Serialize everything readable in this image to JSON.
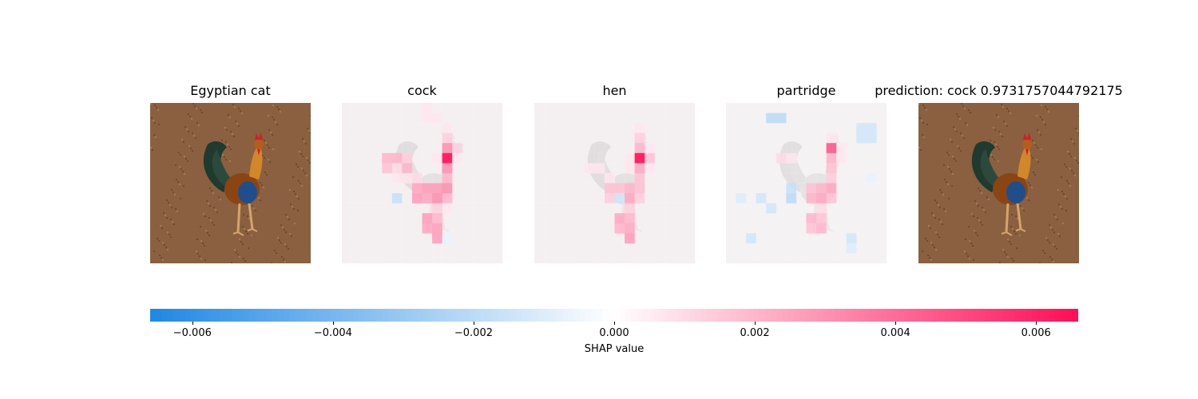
{
  "panels": [
    {
      "title": "Egyptian cat",
      "kind": "photo"
    },
    {
      "title": "cock",
      "kind": "shap",
      "grid": [
        [
          0.05,
          0.05,
          0.05,
          0.05,
          0.05,
          0.05,
          0.05,
          0.05,
          0.1,
          0.05,
          0.05,
          0.05,
          0.05,
          0.05,
          0.05,
          0.05
        ],
        [
          0.05,
          0.05,
          0.05,
          0.05,
          0.05,
          0.05,
          0.05,
          0.05,
          0.1,
          0.1,
          0.05,
          0.05,
          0.05,
          0.05,
          0.05,
          0.05
        ],
        [
          0.05,
          0.05,
          0.05,
          0.05,
          0.05,
          0.05,
          0.05,
          0.05,
          0.05,
          0.05,
          0.1,
          0.05,
          0.05,
          0.05,
          0.05,
          0.05
        ],
        [
          0.05,
          0.05,
          0.05,
          0.05,
          0.05,
          0.05,
          0.05,
          0.05,
          0.05,
          0.05,
          0.2,
          0.05,
          0.05,
          0.05,
          0.05,
          0.05
        ],
        [
          0.05,
          0.05,
          0.05,
          0.05,
          0.05,
          0.05,
          0.05,
          0.05,
          0.05,
          0.05,
          0.45,
          0.2,
          0.05,
          0.05,
          0.05,
          0.05
        ],
        [
          0.05,
          0.05,
          0.05,
          0.05,
          0.3,
          0.3,
          0.2,
          0.05,
          0.05,
          0.1,
          1.0,
          0.1,
          0.05,
          0.05,
          0.05,
          0.05
        ],
        [
          0.05,
          0.05,
          0.05,
          0.05,
          0.25,
          0.15,
          0.3,
          0.05,
          0.05,
          0.05,
          0.45,
          0.05,
          0.05,
          0.05,
          0.05,
          0.05
        ],
        [
          0.05,
          0.05,
          0.05,
          0.05,
          0.05,
          0.1,
          0.1,
          0.15,
          0.05,
          0.05,
          0.3,
          0.05,
          0.05,
          0.05,
          0.05,
          0.05
        ],
        [
          0.05,
          0.05,
          0.05,
          0.05,
          0.05,
          0.05,
          0.05,
          0.35,
          0.4,
          0.4,
          0.45,
          0.05,
          0.05,
          0.05,
          0.05,
          0.05
        ],
        [
          0.05,
          0.05,
          0.05,
          0.05,
          0.05,
          -0.25,
          0.05,
          0.4,
          0.35,
          0.45,
          0.3,
          0.05,
          0.05,
          0.05,
          0.05,
          0.05
        ],
        [
          0.05,
          0.05,
          0.05,
          0.05,
          0.05,
          0.05,
          0.05,
          0.05,
          0.05,
          0.2,
          0.1,
          0.05,
          0.05,
          0.05,
          0.05,
          0.05
        ],
        [
          0.05,
          0.05,
          0.05,
          0.05,
          0.05,
          0.05,
          0.05,
          0.05,
          0.4,
          0.3,
          0.05,
          0.05,
          0.05,
          0.05,
          0.05,
          0.05
        ],
        [
          0.05,
          0.05,
          0.05,
          0.05,
          0.05,
          0.05,
          0.05,
          0.05,
          0.35,
          0.4,
          0.05,
          0.05,
          0.05,
          0.05,
          0.05,
          0.05
        ],
        [
          0.05,
          0.05,
          0.05,
          0.05,
          0.05,
          0.05,
          0.05,
          0.05,
          0.05,
          0.4,
          -0.1,
          0.05,
          0.05,
          0.05,
          0.05,
          0.05
        ],
        [
          0.05,
          0.05,
          0.05,
          0.05,
          0.05,
          0.05,
          0.05,
          0.05,
          0.05,
          0.05,
          0.05,
          0.05,
          0.05,
          0.05,
          0.05,
          0.05
        ],
        [
          0.05,
          0.05,
          0.05,
          0.05,
          0.05,
          0.05,
          0.05,
          0.05,
          0.05,
          0.05,
          0.05,
          0.05,
          0.05,
          0.05,
          0.05,
          0.05
        ]
      ]
    },
    {
      "title": "hen",
      "kind": "shap",
      "grid": [
        [
          0.05,
          0.05,
          0.05,
          0.05,
          0.05,
          0.05,
          0.05,
          0.05,
          0.05,
          0.05,
          0.05,
          0.05,
          0.05,
          0.05,
          0.05,
          0.05
        ],
        [
          0.05,
          0.05,
          0.05,
          0.05,
          0.05,
          0.05,
          0.05,
          0.05,
          0.05,
          0.05,
          0.05,
          0.05,
          0.05,
          0.05,
          0.05,
          0.05
        ],
        [
          0.05,
          0.05,
          0.05,
          0.05,
          0.05,
          0.05,
          0.05,
          0.05,
          0.05,
          0.05,
          0.1,
          0.05,
          0.05,
          0.05,
          0.05,
          0.05
        ],
        [
          0.05,
          0.05,
          0.05,
          0.05,
          0.05,
          0.05,
          0.05,
          0.05,
          0.05,
          0.05,
          0.2,
          0.05,
          0.05,
          0.05,
          0.05,
          0.05
        ],
        [
          0.05,
          0.05,
          0.05,
          0.05,
          0.05,
          0.05,
          0.05,
          0.05,
          0.05,
          0.05,
          0.3,
          0.1,
          0.05,
          0.05,
          0.05,
          0.05
        ],
        [
          0.05,
          0.05,
          0.05,
          0.05,
          0.05,
          0.05,
          0.05,
          0.05,
          0.05,
          0.1,
          1.0,
          0.25,
          0.05,
          0.05,
          0.05,
          0.05
        ],
        [
          0.05,
          0.05,
          0.05,
          0.05,
          0.05,
          0.1,
          0.1,
          0.05,
          0.05,
          0.1,
          0.35,
          0.1,
          0.05,
          0.05,
          0.05,
          0.05
        ],
        [
          0.05,
          0.05,
          0.05,
          0.05,
          0.05,
          0.05,
          0.05,
          0.1,
          0.05,
          0.05,
          0.25,
          0.05,
          0.05,
          0.05,
          0.05,
          0.05
        ],
        [
          0.05,
          0.05,
          0.05,
          0.05,
          0.05,
          0.05,
          0.05,
          0.25,
          0.25,
          0.3,
          0.25,
          0.05,
          0.05,
          0.05,
          0.05,
          0.05
        ],
        [
          0.05,
          0.05,
          0.05,
          0.05,
          0.05,
          0.05,
          0.05,
          0.2,
          -0.2,
          0.35,
          0.2,
          0.05,
          0.05,
          0.05,
          0.05,
          0.05
        ],
        [
          0.05,
          0.05,
          0.05,
          0.05,
          0.05,
          0.05,
          0.05,
          0.05,
          0.05,
          0.2,
          0.05,
          0.05,
          0.05,
          0.05,
          0.05,
          0.05
        ],
        [
          0.05,
          0.05,
          0.05,
          0.05,
          0.05,
          0.05,
          0.05,
          0.05,
          0.35,
          0.3,
          0.05,
          0.05,
          0.05,
          0.05,
          0.05,
          0.05
        ],
        [
          0.05,
          0.05,
          0.05,
          0.05,
          0.05,
          0.05,
          0.05,
          0.05,
          0.3,
          0.35,
          0.05,
          0.05,
          0.05,
          0.05,
          0.05,
          0.05
        ],
        [
          0.05,
          0.05,
          0.05,
          0.05,
          0.05,
          0.05,
          0.05,
          0.05,
          0.05,
          0.4,
          0.05,
          0.05,
          0.05,
          0.05,
          0.05,
          0.05
        ],
        [
          0.05,
          0.05,
          0.05,
          0.05,
          0.05,
          0.05,
          0.05,
          0.05,
          0.05,
          0.05,
          0.05,
          0.05,
          0.05,
          0.05,
          0.05,
          0.05
        ],
        [
          0.05,
          0.05,
          0.05,
          0.05,
          0.05,
          0.05,
          0.05,
          0.05,
          0.05,
          0.05,
          0.05,
          0.05,
          0.05,
          0.05,
          0.05,
          0.05
        ]
      ]
    },
    {
      "title": "partridge",
      "kind": "shap",
      "grid": [
        [
          0.02,
          0.02,
          0.02,
          0.02,
          0.02,
          0.02,
          0.02,
          0.02,
          0.02,
          0.02,
          0.02,
          0.02,
          0.02,
          0.02,
          0.02,
          0.02
        ],
        [
          0.02,
          0.02,
          0.02,
          0.02,
          -0.3,
          -0.3,
          0.02,
          0.02,
          0.02,
          0.02,
          0.02,
          0.02,
          0.02,
          0.02,
          0.02,
          0.02
        ],
        [
          0.02,
          0.02,
          0.02,
          0.02,
          0.02,
          0.02,
          0.02,
          0.02,
          0.02,
          0.02,
          0.02,
          0.02,
          0.02,
          -0.2,
          -0.2,
          0.02
        ],
        [
          0.02,
          0.02,
          0.02,
          0.02,
          0.02,
          0.02,
          0.02,
          0.02,
          0.02,
          0.02,
          0.1,
          0.02,
          0.02,
          -0.2,
          -0.2,
          0.02
        ],
        [
          0.02,
          0.02,
          0.02,
          0.02,
          0.02,
          0.02,
          0.02,
          0.02,
          0.02,
          0.02,
          0.7,
          0.1,
          0.02,
          0.02,
          0.02,
          0.02
        ],
        [
          0.02,
          0.02,
          0.02,
          0.02,
          0.02,
          0.15,
          0.1,
          0.02,
          0.02,
          0.02,
          0.3,
          0.1,
          0.02,
          0.02,
          0.02,
          0.02
        ],
        [
          0.02,
          0.02,
          0.02,
          0.02,
          0.02,
          0.02,
          0.02,
          0.02,
          0.02,
          0.02,
          0.25,
          0.02,
          0.02,
          0.02,
          0.02,
          0.02
        ],
        [
          0.02,
          0.02,
          0.02,
          0.02,
          0.02,
          0.02,
          0.02,
          0.02,
          0.02,
          0.02,
          0.2,
          0.02,
          0.02,
          0.02,
          -0.1,
          0.02
        ],
        [
          0.02,
          0.02,
          0.02,
          0.02,
          0.02,
          0.02,
          -0.25,
          0.02,
          0.25,
          0.3,
          0.35,
          0.02,
          0.02,
          0.02,
          0.02,
          0.02
        ],
        [
          0.02,
          -0.15,
          0.02,
          -0.2,
          0.02,
          0.02,
          -0.3,
          0.02,
          0.3,
          0.35,
          0.25,
          0.02,
          0.02,
          0.02,
          0.02,
          0.02
        ],
        [
          0.02,
          0.02,
          0.02,
          0.02,
          -0.2,
          0.02,
          0.02,
          0.02,
          0.02,
          0.15,
          0.02,
          0.02,
          0.02,
          0.02,
          0.02,
          0.02
        ],
        [
          0.02,
          0.02,
          0.02,
          0.02,
          0.02,
          0.02,
          0.02,
          0.02,
          0.3,
          0.25,
          0.02,
          0.02,
          0.02,
          0.02,
          0.02,
          0.02
        ],
        [
          0.02,
          0.02,
          0.02,
          0.02,
          0.02,
          0.02,
          0.02,
          0.02,
          0.25,
          0.3,
          0.02,
          0.02,
          0.02,
          0.02,
          0.02,
          0.02
        ],
        [
          0.02,
          0.02,
          -0.2,
          0.02,
          0.02,
          0.02,
          0.02,
          0.02,
          0.02,
          0.02,
          0.02,
          0.02,
          -0.2,
          0.02,
          0.02,
          0.02
        ],
        [
          0.02,
          0.02,
          0.02,
          0.02,
          0.02,
          0.02,
          0.02,
          0.02,
          0.02,
          0.02,
          0.02,
          0.02,
          -0.15,
          0.02,
          0.02,
          0.02
        ],
        [
          0.02,
          0.02,
          0.02,
          0.02,
          0.02,
          0.02,
          0.02,
          0.02,
          0.02,
          0.02,
          0.02,
          0.02,
          0.02,
          0.02,
          0.02,
          0.02
        ]
      ]
    },
    {
      "title": "prediction: cock 0.9731757044792175",
      "kind": "photo"
    }
  ],
  "colorbar": {
    "label": "SHAP value",
    "min": -0.0066,
    "max": 0.0066,
    "ticks": [
      "−0.006",
      "−0.004",
      "−0.002",
      "0.000",
      "0.002",
      "0.004",
      "0.006"
    ],
    "tick_values": [
      -0.006,
      -0.004,
      -0.002,
      0.0,
      0.002,
      0.004,
      0.006
    ],
    "neg_color": "#1e88e5",
    "pos_color": "#ff0d57"
  },
  "chart_data": {
    "type": "heatmap",
    "title": "",
    "series": [
      {
        "name": "cock",
        "peak_shap": 0.0066
      },
      {
        "name": "hen",
        "peak_shap": 0.0066
      },
      {
        "name": "partridge",
        "peak_shap": 0.0046
      }
    ],
    "xlabel": "SHAP value",
    "ylabel": "",
    "colorbar_range": [
      -0.0066,
      0.0066
    ]
  }
}
